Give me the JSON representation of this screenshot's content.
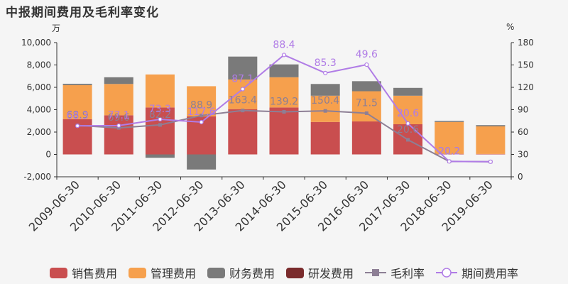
{
  "title": "中报期间费用及毛利率变化",
  "colors": {
    "sales": "#c94e4f",
    "admin": "#f6a04d",
    "finance": "#7a7a7a",
    "rd": "#7a2b2c",
    "gross_margin": "#8d7f95",
    "expense_ratio": "#b07ce6"
  },
  "chart_data": {
    "type": "bar",
    "stacked": true,
    "categories": [
      "2009-06-30",
      "2010-06-30",
      "2011-06-30",
      "2012-06-30",
      "2013-06-30",
      "2014-06-30",
      "2015-06-30",
      "2016-06-30",
      "2017-06-30",
      "2018-06-30",
      "2019-06-30"
    ],
    "series": [
      {
        "name": "销售费用",
        "key": "sales",
        "values": [
          3150,
          3500,
          4200,
          3400,
          4050,
          4200,
          2900,
          2950,
          2700,
          50,
          40
        ]
      },
      {
        "name": "管理费用",
        "key": "admin",
        "values": [
          3050,
          2800,
          2950,
          2700,
          2650,
          2700,
          2350,
          2700,
          2550,
          2850,
          2470
        ]
      },
      {
        "name": "财务费用",
        "key": "finance",
        "values": [
          120,
          600,
          -300,
          -1350,
          2050,
          1150,
          1050,
          900,
          700,
          100,
          110
        ]
      },
      {
        "name": "研发费用",
        "key": "rd",
        "values": [
          0,
          0,
          0,
          0,
          0,
          0,
          0,
          0,
          0,
          0,
          0
        ]
      }
    ],
    "lines": [
      {
        "name": "毛利率",
        "key": "gross_margin",
        "values": [
          68.9,
          65.6,
          69.6,
          82.2,
          88.9,
          87.1,
          88.4,
          85.3,
          49.6,
          20.6,
          20.2
        ]
      },
      {
        "name": "期间费用率",
        "key": "expense_ratio",
        "values": [
          68.3,
          68.7,
          77.1,
          73.3,
          117.6,
          163.4,
          139.2,
          150.4,
          71.5,
          20.6,
          20.2
        ]
      }
    ],
    "line_labels": [
      "68.9",
      "68.3",
      "69.6",
      "77.1",
      "82.2",
      "73.3",
      "88.9",
      "117.6",
      "163.4",
      "87.1",
      "139.2",
      "88.4",
      "150.4",
      "85.3",
      "71.5",
      "49.6",
      "20.6",
      "20.6",
      "20.2",
      "20.2"
    ],
    "y_left": {
      "unit": "万",
      "ylim": [
        -2000,
        10000
      ],
      "ticks": [
        "-2,000",
        "0",
        "2,000",
        "4,000",
        "6,000",
        "8,000",
        "10,000"
      ]
    },
    "y_right": {
      "unit": "%",
      "ylim": [
        0,
        180
      ],
      "ticks": [
        "0",
        "30",
        "60",
        "90",
        "120",
        "150",
        "180"
      ]
    },
    "grid": false,
    "legend_position": "bottom"
  }
}
